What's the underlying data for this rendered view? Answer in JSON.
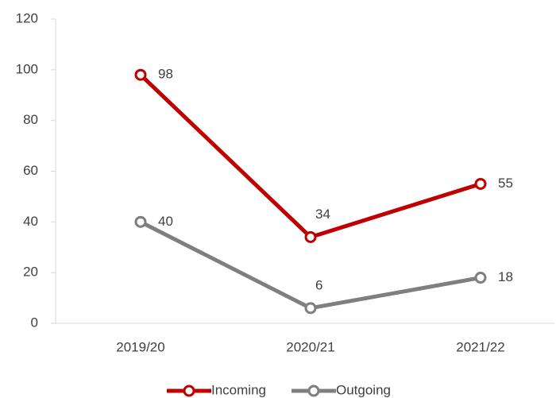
{
  "chart_data": {
    "type": "line",
    "categories": [
      "2019/20",
      "2020/21",
      "2021/22"
    ],
    "series": [
      {
        "name": "Incoming",
        "color": "#c00000",
        "values": [
          98,
          34,
          55
        ]
      },
      {
        "name": "Outgoing",
        "color": "#7f7f7f",
        "values": [
          40,
          6,
          18
        ]
      }
    ],
    "ylim": [
      0,
      120
    ],
    "yticks": [
      0,
      20,
      40,
      60,
      80,
      100,
      120
    ],
    "grid": false,
    "legend": "bottom"
  }
}
